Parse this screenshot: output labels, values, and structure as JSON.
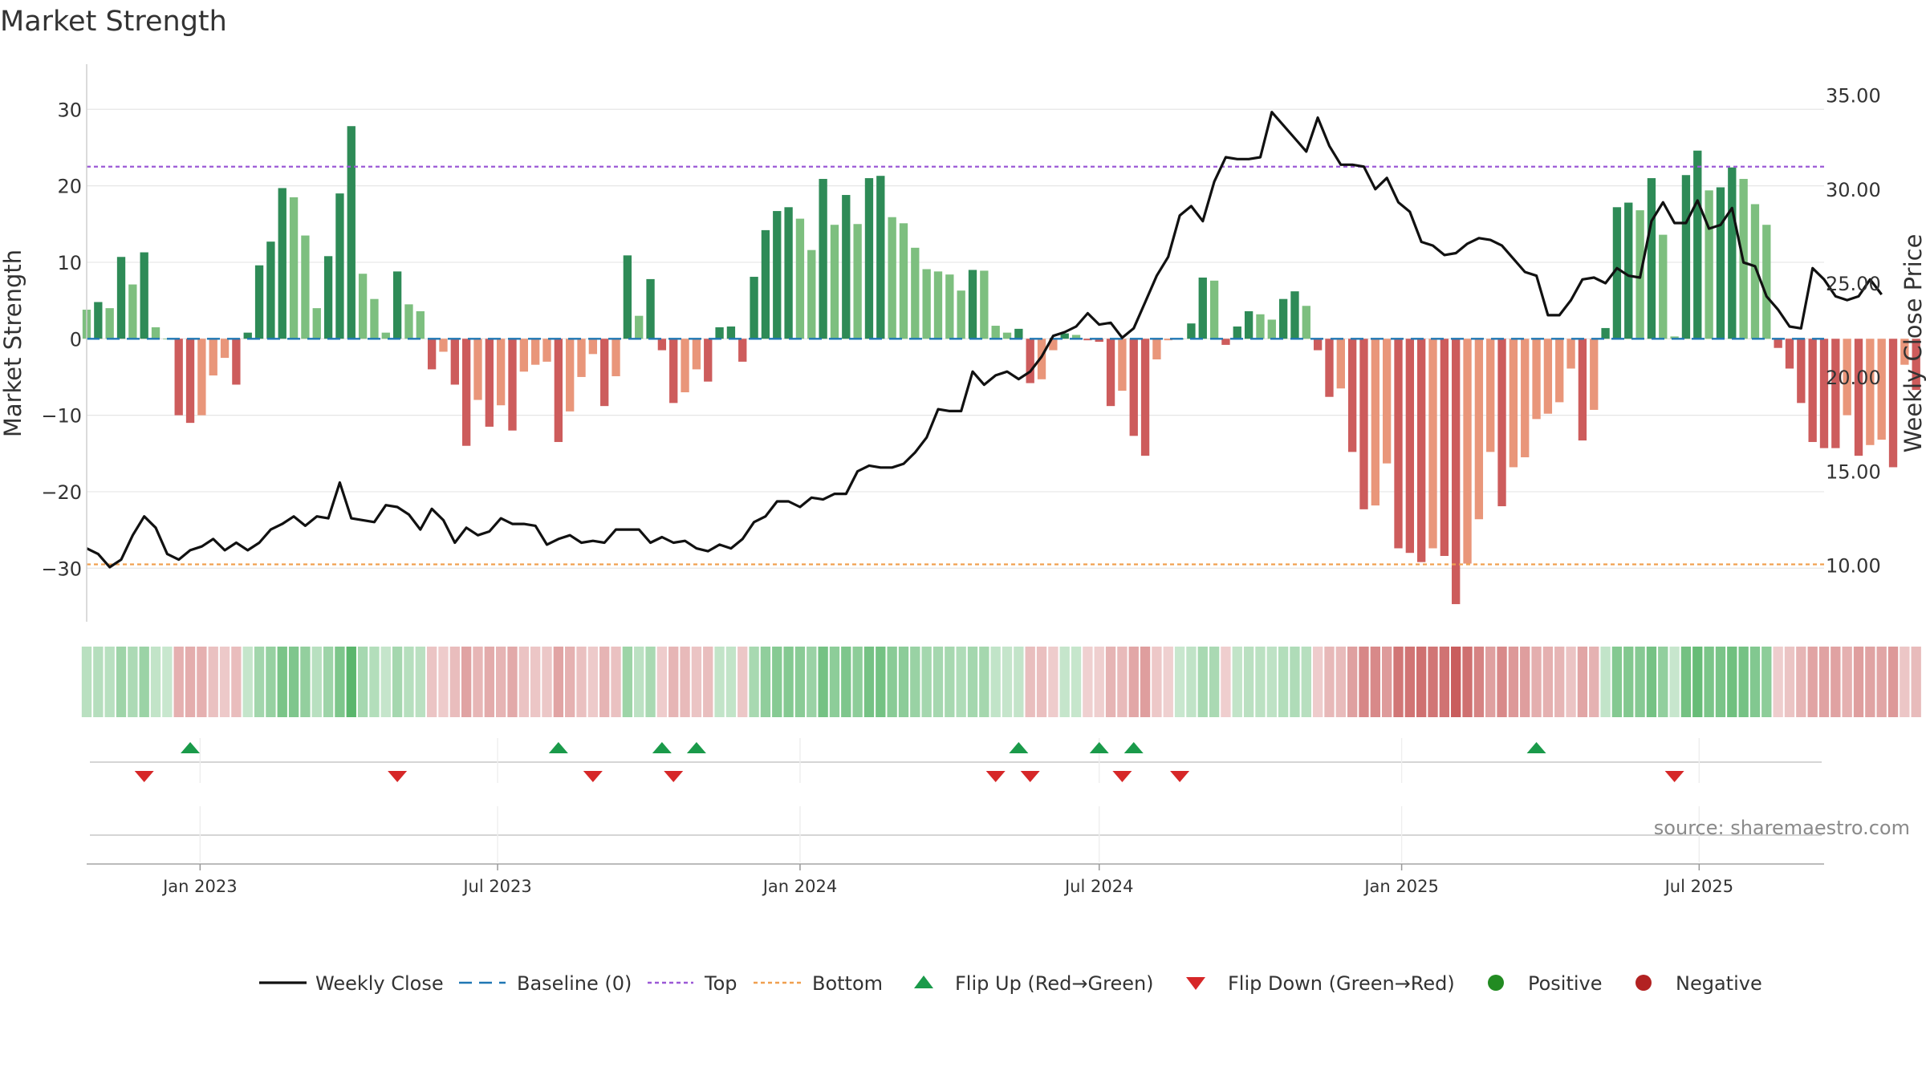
{
  "chart_data": {
    "type": "bar",
    "title": "Market Strength",
    "ylabel_left": "Market Strength",
    "ylabel_right": "Weekly Close Price",
    "ylim_left": [
      -37,
      38
    ],
    "ylim_right": [
      7.0,
      37.5
    ],
    "yticks_left": [
      30,
      20,
      10,
      0,
      -10,
      -20,
      -30
    ],
    "yticks_left_labels": [
      "30",
      "20",
      "10",
      "0",
      "−10",
      "−20",
      "−30"
    ],
    "yticks_right": [
      35,
      30,
      25,
      20,
      15,
      10
    ],
    "yticks_right_labels": [
      "35.00",
      "30.00",
      "25.00",
      "20.00",
      "15.00",
      "10.00"
    ],
    "x_start": "2022-10-24",
    "x_end": "2025-09-15",
    "xticks": [
      {
        "date": "2023-01-01",
        "label": "Jan 2023"
      },
      {
        "date": "2023-07-01",
        "label": "Jul 2023"
      },
      {
        "date": "2024-01-01",
        "label": "Jan 2024"
      },
      {
        "date": "2024-07-01",
        "label": "Jul 2024"
      },
      {
        "date": "2025-01-01",
        "label": "Jan 2025"
      },
      {
        "date": "2025-07-01",
        "label": "Jul 2025"
      }
    ],
    "top_line": 22.5,
    "bottom_line": -29.5,
    "grid": true,
    "legend_position": "bottom",
    "strength": [
      3.8,
      4.8,
      4,
      10.7,
      7.1,
      11.3,
      1.5,
      0,
      -10,
      -11,
      -10,
      -4.8,
      -2.5,
      -6,
      0.8,
      9.6,
      12.7,
      19.7,
      18.5,
      13.5,
      4,
      10.8,
      19,
      27.8,
      8.5,
      5.2,
      0.8,
      8.8,
      4.5,
      3.6,
      -4,
      -1.7,
      -6,
      -14,
      -8,
      -11.5,
      -8.7,
      -12,
      -4.3,
      -3.4,
      -3,
      -13.5,
      -9.5,
      -5,
      -2,
      -8.8,
      -4.9,
      10.9,
      3,
      7.8,
      -1.5,
      -8.4,
      -7,
      -4,
      -5.6,
      1.5,
      1.6,
      -3,
      8.1,
      14.2,
      16.7,
      17.2,
      15.7,
      11.6,
      20.9,
      14.9,
      18.8,
      15,
      21,
      21.3,
      15.9,
      15.1,
      11.9,
      9.1,
      8.8,
      8.4,
      6.3,
      9,
      8.9,
      1.7,
      0.8,
      1.3,
      -5.8,
      -5.3,
      -1.5,
      0.7,
      0.5,
      -0.2,
      -0.4,
      -8.8,
      -6.8,
      -12.7,
      -15.3,
      -2.7,
      -0.2,
      0,
      2,
      8,
      7.6,
      -0.8,
      1.6,
      3.6,
      3.2,
      2.5,
      5.2,
      6.2,
      4.3,
      -1.5,
      -7.6,
      -6.5,
      -14.8,
      -22.3,
      -21.8,
      -16.3,
      -27.4,
      -28,
      -29.2,
      -27.4,
      -28.4,
      -34.7,
      -29.4,
      -23.6,
      -14.8,
      -21.9,
      -16.8,
      -15.5,
      -10.5,
      -9.8,
      -8.3,
      -3.9,
      -13.3,
      -9.3,
      1.4,
      17.2,
      17.8,
      16.8,
      21,
      13.6,
      0.3,
      21.4,
      24.6,
      19.4,
      19.8,
      22.4,
      20.9,
      17.6,
      14.9,
      -1.2,
      -3.9,
      -8.4,
      -13.5,
      -14.3,
      -14.3,
      -10,
      -15.3,
      -13.9,
      -13.2,
      -16.8,
      -3.4,
      -6.7
    ],
    "close": [
      10.9,
      10.6,
      9.9,
      10.3,
      11.6,
      12.6,
      12,
      10.6,
      10.3,
      10.8,
      11,
      11.4,
      10.8,
      11.2,
      10.8,
      11.2,
      11.9,
      12.2,
      12.6,
      12.1,
      12.6,
      12.5,
      14.4,
      12.5,
      12.4,
      12.3,
      13.2,
      13.1,
      12.7,
      11.9,
      13,
      12.4,
      11.2,
      12,
      11.6,
      11.8,
      12.5,
      12.2,
      12.2,
      12.1,
      11.1,
      11.4,
      11.6,
      11.2,
      11.3,
      11.2,
      11.9,
      11.9,
      11.9,
      11.2,
      11.5,
      11.2,
      11.3,
      10.9,
      10.75,
      11.1,
      10.9,
      11.4,
      12.3,
      12.6,
      13.4,
      13.4,
      13.1,
      13.6,
      13.5,
      13.8,
      13.8,
      15,
      15.3,
      15.2,
      15.2,
      15.4,
      16,
      16.8,
      18.3,
      18.2,
      18.2,
      20.3,
      19.6,
      20.1,
      20.3,
      19.9,
      20.3,
      21.1,
      22.2,
      22.4,
      22.7,
      23.4,
      22.8,
      22.9,
      22.1,
      22.6,
      24,
      25.4,
      26.4,
      28.6,
      29.1,
      28.3,
      30.4,
      31.7,
      31.6,
      31.6,
      31.7,
      34.1,
      33.4,
      32.7,
      32,
      33.8,
      32.3,
      31.3,
      31.3,
      31.2,
      30,
      30.6,
      29.3,
      28.8,
      27.2,
      27,
      26.5,
      26.6,
      27.1,
      27.4,
      27.3,
      27,
      26.3,
      25.6,
      25.4,
      23.3,
      23.3,
      24.1,
      25.2,
      25.3,
      25,
      25.8,
      25.4,
      25.3,
      28.3,
      29.3,
      28.2,
      28.2,
      29.4,
      27.9,
      28.1,
      29,
      26.1,
      25.9,
      24.3,
      23.6,
      22.7,
      22.6,
      25.8,
      25.2,
      24.3,
      24.1,
      24.3,
      25.2,
      24.4
    ],
    "flip_up_dates": [
      "2022-12-26",
      "2023-08-07",
      "2023-10-09",
      "2023-10-30",
      "2024-05-13",
      "2024-07-01",
      "2024-07-22",
      "2025-03-24"
    ],
    "flip_down_dates": [
      "2022-11-28",
      "2023-05-01",
      "2023-08-28",
      "2023-10-16",
      "2024-04-29",
      "2024-05-20",
      "2024-07-15",
      "2024-08-19",
      "2025-06-16"
    ],
    "legend": [
      {
        "key": "weekly_close",
        "label": "Weekly Close"
      },
      {
        "key": "baseline",
        "label": "Baseline (0)"
      },
      {
        "key": "top",
        "label": "Top"
      },
      {
        "key": "bottom",
        "label": "Bottom"
      },
      {
        "key": "flip_up",
        "label": "Flip Up (Red→Green)"
      },
      {
        "key": "flip_down",
        "label": "Flip Down (Green→Red)"
      },
      {
        "key": "positive",
        "label": "Positive"
      },
      {
        "key": "negative",
        "label": "Negative"
      }
    ],
    "colors": {
      "pos_strong": "#2e8b57",
      "pos_light": "#7dbf7f",
      "neg_strong": "#cd5c5c",
      "neg_light": "#e9967a",
      "close_line": "#111111",
      "baseline": "#1f77b4",
      "top_line": "#9b59d6",
      "bottom_line": "#f0a050",
      "flip_up": "#1a9a4a",
      "flip_down": "#d62728",
      "positive_dot": "#228b22",
      "negative_dot": "#b22222",
      "grid": "#e6e6e6"
    },
    "source": "source: sharemaestro.com"
  }
}
